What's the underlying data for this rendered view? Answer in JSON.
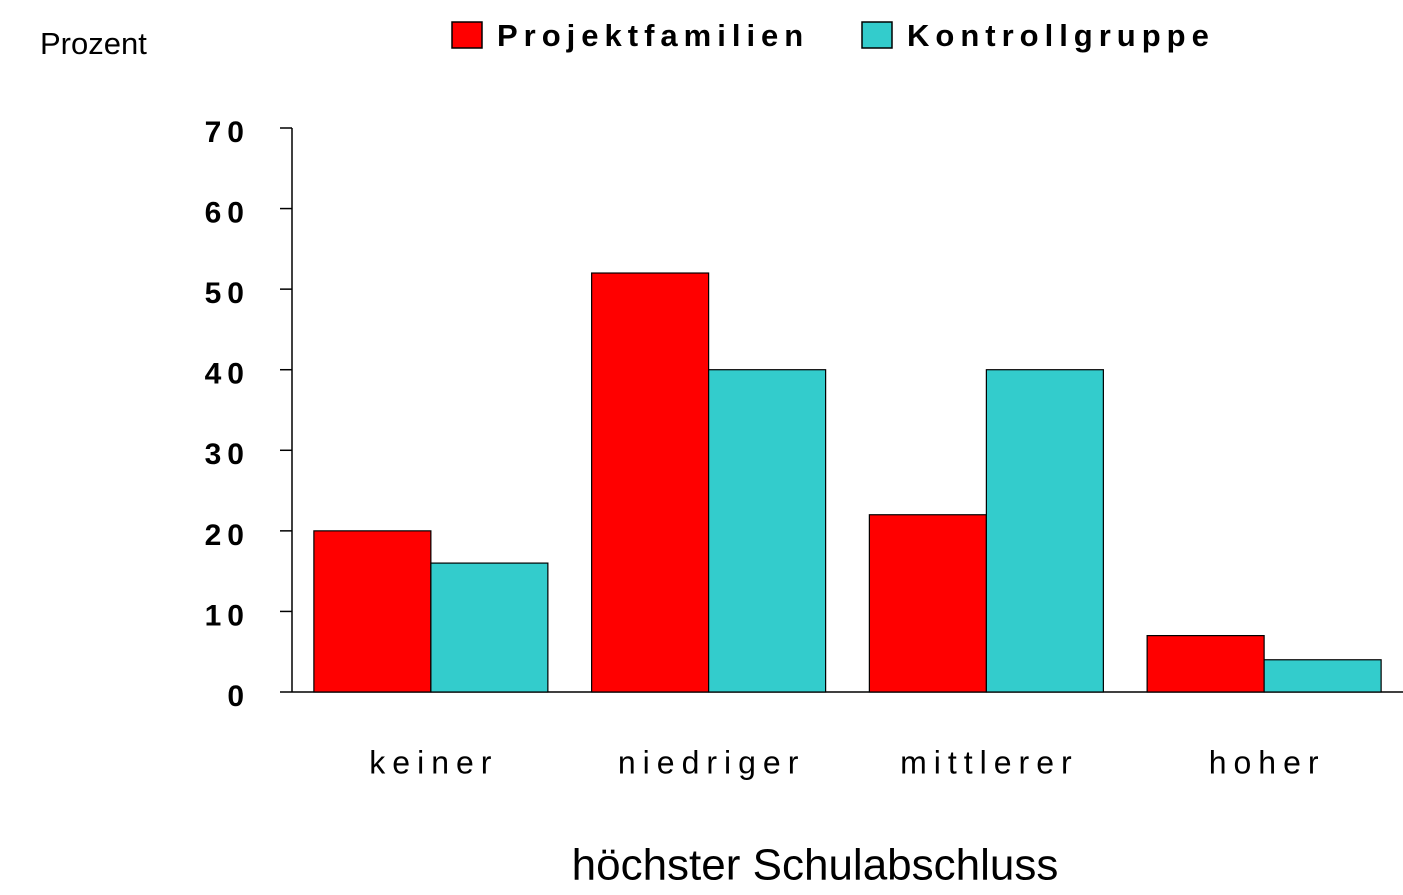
{
  "chart_data": {
    "type": "bar",
    "y_axis_label": "Prozent",
    "x_axis_label": "höchster Schulabschluss",
    "categories": [
      "keiner",
      "niedriger",
      "mittlerer",
      "hoher"
    ],
    "series": [
      {
        "name": "Projektfamilien",
        "color": "#ff0000",
        "values": [
          20,
          52,
          22,
          7
        ]
      },
      {
        "name": "Kontrollgruppe",
        "color": "#33cccc",
        "values": [
          16,
          40,
          40,
          4
        ]
      }
    ],
    "ylim": [
      0,
      70
    ],
    "yticks": [
      0,
      10,
      20,
      30,
      40,
      50,
      60,
      70
    ],
    "grid": false
  }
}
